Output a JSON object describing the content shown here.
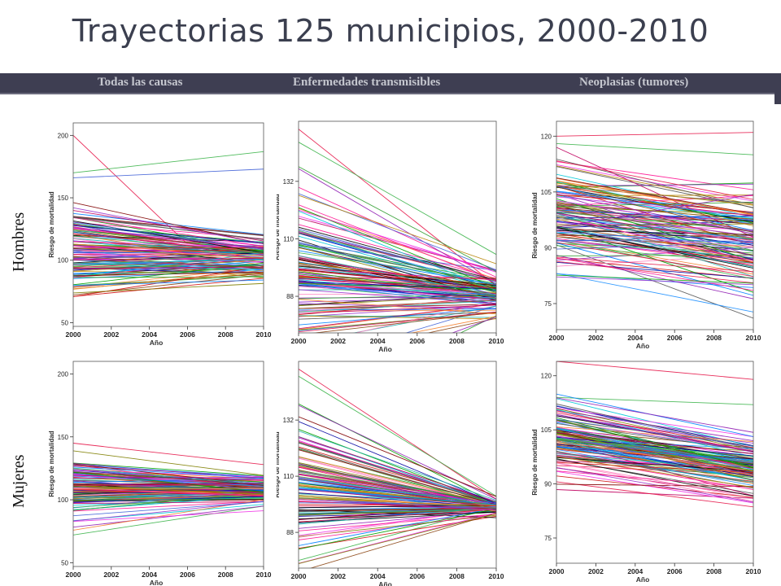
{
  "title": "Trayectorias 125 municipios, 2000-2010",
  "columns": [
    "Todas las causas",
    "Enfermedades transmisibles",
    "Neoplasias (tumores)"
  ],
  "rows": [
    "Hombres",
    "Mujeres"
  ],
  "chart_data": [
    {
      "type": "line",
      "row": "Hombres",
      "column": "Todas las causas",
      "xlabel": "Año",
      "ylabel": "Riesgo de mortalidad",
      "xticks": [
        2000,
        2002,
        2004,
        2006,
        2008,
        2010
      ],
      "yticks": [
        50,
        100,
        150,
        200
      ],
      "xlim": [
        2000,
        2010
      ],
      "ylim": [
        47,
        210
      ],
      "lines": 125,
      "start_mean": 108,
      "start_sd": 18,
      "end_mean": 102,
      "end_sd": 12,
      "series_examples": [
        [
          2000,
          200,
          2006,
          113
        ],
        [
          2000,
          170,
          2010,
          187
        ],
        [
          2000,
          166,
          2010,
          173
        ]
      ]
    },
    {
      "type": "line",
      "row": "Hombres",
      "column": "Enfermedades transmisibles",
      "xlabel": "Año",
      "ylabel": "Riesgo de mortalidad",
      "xticks": [
        2000,
        2002,
        2004,
        2006,
        2008,
        2010
      ],
      "yticks": [
        88,
        110,
        132
      ],
      "xlim": [
        2000,
        2010
      ],
      "ylim": [
        74,
        155
      ],
      "lines": 125,
      "start_mean": 96,
      "start_sd": 15,
      "end_mean": 89,
      "end_sd": 6,
      "series_examples": [
        [
          2000,
          152,
          2010,
          92
        ],
        [
          2000,
          147,
          2010,
          104
        ]
      ]
    },
    {
      "type": "line",
      "row": "Hombres",
      "column": "Neoplasias (tumores)",
      "xlabel": "Año",
      "ylabel": "Riesgo de mortalidad",
      "xticks": [
        2000,
        2002,
        2004,
        2006,
        2008,
        2010
      ],
      "yticks": [
        75,
        90,
        105,
        120
      ],
      "xlim": [
        2000,
        2010
      ],
      "ylim": [
        68,
        124
      ],
      "lines": 125,
      "start_mean": 99,
      "start_sd": 8,
      "end_mean": 92,
      "end_sd": 10,
      "series_examples": [
        [
          2000,
          120,
          2010,
          121
        ],
        [
          2000,
          118,
          2010,
          115
        ]
      ]
    },
    {
      "type": "line",
      "row": "Mujeres",
      "column": "Todas las causas",
      "xlabel": "Año",
      "ylabel": "Riesgo de mortalidad",
      "xticks": [
        2000,
        2002,
        2004,
        2006,
        2008,
        2010
      ],
      "yticks": [
        50,
        100,
        150,
        200
      ],
      "xlim": [
        2000,
        2010
      ],
      "ylim": [
        47,
        210
      ],
      "lines": 125,
      "start_mean": 110,
      "start_sd": 12,
      "end_mean": 108,
      "end_sd": 7,
      "series_examples": [
        [
          2000,
          145,
          2010,
          128
        ],
        [
          2000,
          72,
          2010,
          95
        ]
      ]
    },
    {
      "type": "line",
      "row": "Mujeres",
      "column": "Enfermedades transmisibles",
      "xlabel": "Año",
      "ylabel": "Riesgo de mortalidad",
      "xticks": [
        2000,
        2002,
        2004,
        2006,
        2008,
        2010
      ],
      "yticks": [
        88,
        110,
        132
      ],
      "xlim": [
        2000,
        2010
      ],
      "ylim": [
        74,
        155
      ],
      "lines": 125,
      "start_mean": 105,
      "start_sd": 14,
      "end_mean": 98,
      "end_sd": 2,
      "series_examples": [
        [
          2000,
          152,
          2010,
          101
        ],
        [
          2000,
          77,
          2010,
          98
        ]
      ]
    },
    {
      "type": "line",
      "row": "Mujeres",
      "column": "Neoplasias (tumores)",
      "xlabel": "Año",
      "ylabel": "Riesgo de mortalidad",
      "xticks": [
        2000,
        2002,
        2004,
        2006,
        2008,
        2010
      ],
      "yticks": [
        75,
        90,
        105,
        120
      ],
      "xlim": [
        2000,
        2010
      ],
      "ylim": [
        68,
        124
      ],
      "lines": 125,
      "start_mean": 103,
      "start_sd": 5,
      "end_mean": 95,
      "end_sd": 6,
      "series_examples": [
        [
          2000,
          124,
          2010,
          119
        ],
        [
          2000,
          114,
          2010,
          112
        ]
      ]
    }
  ]
}
